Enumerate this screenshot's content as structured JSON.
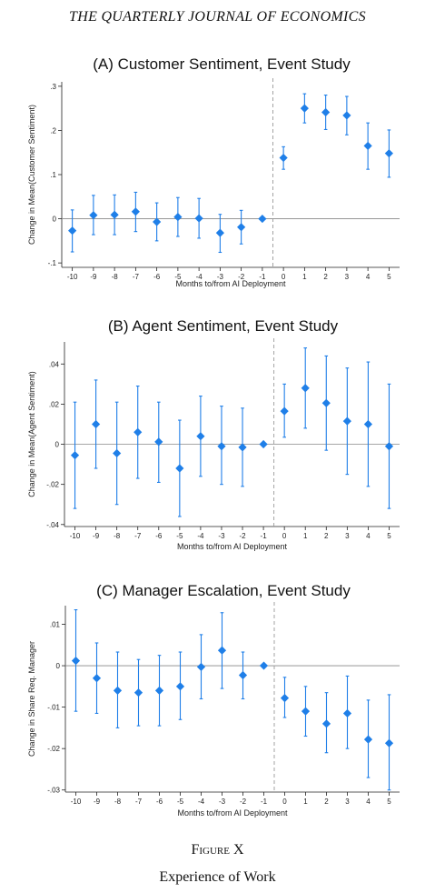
{
  "journal_header": "THE QUARTERLY JOURNAL OF ECONOMICS",
  "figure_label": "Figure X",
  "figure_caption": "Experience of Work",
  "colors": {
    "marker": "#1f7fe8",
    "zero_line": "#888888",
    "event_line": "#999999"
  },
  "chart_data": [
    {
      "type": "scatter",
      "title": "(A)  Customer Sentiment, Event Study",
      "xlabel": "Months to/from AI Deployment",
      "ylabel": "Change in Mean(Customer Sentiment)",
      "x": [
        -10,
        -9,
        -8,
        -7,
        -6,
        -5,
        -4,
        -3,
        -2,
        -1,
        0,
        1,
        2,
        3,
        4,
        5
      ],
      "y": [
        -0.027,
        0.008,
        0.009,
        0.016,
        -0.007,
        0.004,
        0.001,
        -0.032,
        -0.019,
        0.0,
        0.138,
        0.25,
        0.241,
        0.234,
        0.165,
        0.148
      ],
      "ci_low": [
        -0.075,
        -0.036,
        -0.036,
        -0.029,
        -0.05,
        -0.04,
        -0.044,
        -0.076,
        -0.057,
        0.0,
        0.112,
        0.217,
        0.202,
        0.19,
        0.112,
        0.094
      ],
      "ci_high": [
        0.02,
        0.053,
        0.054,
        0.06,
        0.036,
        0.048,
        0.046,
        0.01,
        0.019,
        0.0,
        0.163,
        0.283,
        0.28,
        0.277,
        0.217,
        0.201
      ],
      "xticks": [
        "-10",
        "-9",
        "-8",
        "-7",
        "-6",
        "-5",
        "-4",
        "-3",
        "-2",
        "-1",
        "0",
        "1",
        "2",
        "3",
        "4",
        "5"
      ],
      "yticks": [
        {
          "v": 0.3,
          "label": ".3"
        },
        {
          "v": 0.2,
          "label": ".2"
        },
        {
          "v": 0.1,
          "label": ".1"
        },
        {
          "v": 0,
          "label": "0"
        },
        {
          "v": -0.1,
          "label": "-.1"
        }
      ],
      "xlim": [
        -10.5,
        5.5
      ],
      "ylim": [
        -0.11,
        0.31
      ],
      "event_line_x": -0.5
    },
    {
      "type": "scatter",
      "title": "(B)  Agent Sentiment, Event Study",
      "xlabel": "Months to/from AI Deployment",
      "ylabel": "Change in Mean(Agent Sentiment)",
      "x": [
        -10,
        -9,
        -8,
        -7,
        -6,
        -5,
        -4,
        -3,
        -2,
        -1,
        0,
        1,
        2,
        3,
        4,
        5
      ],
      "y": [
        -0.0055,
        0.01,
        -0.0045,
        0.006,
        0.0012,
        -0.012,
        0.004,
        -0.001,
        -0.0015,
        0.0,
        0.0165,
        0.028,
        0.0205,
        0.0115,
        0.01,
        -0.001
      ],
      "ci_low": [
        -0.032,
        -0.012,
        -0.03,
        -0.017,
        -0.019,
        -0.036,
        -0.016,
        -0.02,
        -0.021,
        0.0,
        0.0035,
        0.008,
        -0.003,
        -0.015,
        -0.021,
        -0.032
      ],
      "ci_high": [
        0.021,
        0.032,
        0.021,
        0.029,
        0.021,
        0.012,
        0.024,
        0.019,
        0.018,
        0.0,
        0.03,
        0.048,
        0.044,
        0.038,
        0.041,
        0.03
      ],
      "xticks": [
        "-10",
        "-9",
        "-8",
        "-7",
        "-6",
        "-5",
        "-4",
        "-3",
        "-2",
        "-1",
        "0",
        "1",
        "2",
        "3",
        "4",
        "5"
      ],
      "yticks": [
        {
          "v": 0.04,
          "label": ".04"
        },
        {
          "v": 0.02,
          "label": ".02"
        },
        {
          "v": 0,
          "label": "0"
        },
        {
          "v": -0.02,
          "label": "-.02"
        },
        {
          "v": -0.04,
          "label": "-.04"
        }
      ],
      "xlim": [
        -10.5,
        5.5
      ],
      "ylim": [
        -0.041,
        0.051
      ],
      "event_line_x": -0.5
    },
    {
      "type": "scatter",
      "title": "(C)  Manager Escalation, Event Study",
      "xlabel": "Months to/from AI Deployment",
      "ylabel": "Change in Share Req. Manager",
      "x": [
        -10,
        -9,
        -8,
        -7,
        -6,
        -5,
        -4,
        -3,
        -2,
        -1,
        0,
        1,
        2,
        3,
        4,
        5
      ],
      "y": [
        0.0012,
        -0.003,
        -0.006,
        -0.0065,
        -0.006,
        -0.005,
        -0.0003,
        0.0037,
        -0.0023,
        0.0,
        -0.0078,
        -0.011,
        -0.014,
        -0.0115,
        -0.0178,
        -0.0187
      ],
      "ci_low": [
        -0.011,
        -0.0115,
        -0.015,
        -0.0145,
        -0.0145,
        -0.013,
        -0.008,
        -0.0055,
        -0.008,
        0.0,
        -0.0125,
        -0.017,
        -0.021,
        -0.02,
        -0.027,
        -0.03
      ],
      "ci_high": [
        0.0135,
        0.0055,
        0.0033,
        0.0015,
        0.0025,
        0.0033,
        0.0075,
        0.0128,
        0.0033,
        0.0,
        -0.0028,
        -0.005,
        -0.0065,
        -0.0025,
        -0.0083,
        -0.007
      ],
      "xticks": [
        "-10",
        "-9",
        "-8",
        "-7",
        "-6",
        "-5",
        "-4",
        "-3",
        "-2",
        "-1",
        "0",
        "1",
        "2",
        "3",
        "4",
        "5"
      ],
      "yticks": [
        {
          "v": 0.01,
          "label": ".01"
        },
        {
          "v": 0,
          "label": "0"
        },
        {
          "v": -0.01,
          "label": "-.01"
        },
        {
          "v": -0.02,
          "label": "-.02"
        },
        {
          "v": -0.03,
          "label": "-.03"
        }
      ],
      "xlim": [
        -10.5,
        5.5
      ],
      "ylim": [
        -0.0305,
        0.0145
      ],
      "event_line_x": -0.5
    }
  ]
}
